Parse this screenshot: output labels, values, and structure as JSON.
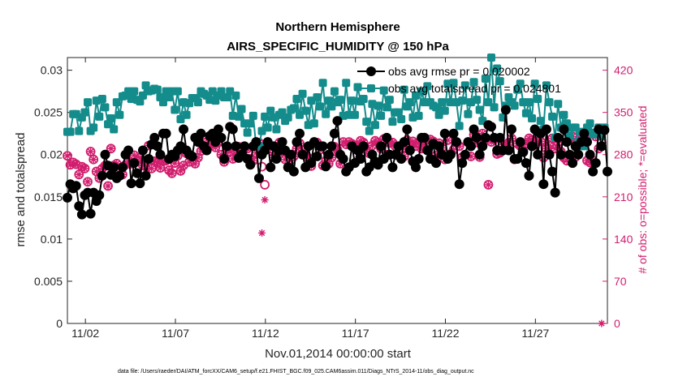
{
  "chart_data": {
    "type": "line",
    "title": "Northern Hemisphere",
    "subtitle": "AIRS_SPECIFIC_HUMIDITY @ 150 hPa",
    "xlabel": "Nov.01,2014 00:00:00 start",
    "ylabel": "rmse and totalspread",
    "y2label": "# of obs: o=possible; *=evaluated",
    "x_ticks": [
      "11/02",
      "11/07",
      "11/12",
      "11/17",
      "11/22",
      "11/27"
    ],
    "x_tick_days": [
      2,
      7,
      12,
      17,
      22,
      27
    ],
    "xlim": [
      1.0,
      31.0
    ],
    "ylim": [
      0,
      0.0315
    ],
    "y_ticks": [
      "0",
      "0.005",
      "0.01",
      "0.015",
      "0.02",
      "0.025",
      "0.03"
    ],
    "y2lim": [
      0,
      441
    ],
    "y2_ticks": [
      "0",
      "70",
      "140",
      "210",
      "280",
      "350",
      "420"
    ],
    "footer": "data file: /Users/raeder/DAI/ATM_forcXX/CAM6_setup/f.e21.FHIST_BGC.f09_025.CAM6assim.011/Diags_NTrS_2014-11/obs_diag_output.nc",
    "colors": {
      "rmse": "#000000",
      "spread": "#148c8c",
      "obs": "#d21e6e"
    },
    "series": [
      {
        "name": "obs avg rmse pr = 0.020002",
        "axis": "left",
        "values": [
          0.0149,
          0.0165,
          0.016,
          0.0163,
          0.0139,
          0.0129,
          0.0152,
          0.0155,
          0.013,
          0.0155,
          0.0145,
          0.0152,
          0.0175,
          0.02,
          0.0187,
          0.0176,
          0.0185,
          0.0172,
          0.0175,
          0.0185,
          0.02,
          0.0205,
          0.0166,
          0.019,
          0.0178,
          0.0166,
          0.0205,
          0.0175,
          0.0195,
          0.0212,
          0.022,
          0.021,
          0.02,
          0.0225,
          0.0225,
          0.0195,
          0.02,
          0.0198,
          0.0205,
          0.021,
          0.023,
          0.0205,
          0.02,
          0.0198,
          0.022,
          0.0215,
          0.0225,
          0.021,
          0.0205,
          0.0222,
          0.0225,
          0.0215,
          0.023,
          0.022,
          0.0195,
          0.021,
          0.0233,
          0.023,
          0.021,
          0.0196,
          0.02,
          0.021,
          0.0195,
          0.0188,
          0.021,
          0.0215,
          0.0172,
          0.02,
          0.0205,
          0.0215,
          0.0185,
          0.021,
          0.0195,
          0.0205,
          0.0215,
          0.0205,
          0.0185,
          0.02,
          0.018,
          0.0215,
          0.0225,
          0.02,
          0.0185,
          0.021,
          0.019,
          0.0215,
          0.0198,
          0.021,
          0.021,
          0.0186,
          0.02,
          0.021,
          0.0225,
          0.024,
          0.02,
          0.0195,
          0.018,
          0.0185,
          0.021,
          0.019,
          0.0205,
          0.0195,
          0.021,
          0.018,
          0.0185,
          0.02,
          0.0192,
          0.0188,
          0.021,
          0.0195,
          0.022,
          0.02,
          0.0185,
          0.02,
          0.021,
          0.0195,
          0.0215,
          0.023,
          0.0205,
          0.0192,
          0.0185,
          0.0195,
          0.022,
          0.022,
          0.0205,
          0.0195,
          0.0213,
          0.019,
          0.021,
          0.02,
          0.0225,
          0.0195,
          0.02,
          0.0225,
          0.0215,
          0.0165,
          0.019,
          0.02,
          0.0215,
          0.021,
          0.023,
          0.022,
          0.02,
          0.021,
          0.022,
          0.0235,
          0.0233,
          0.022,
          0.0205,
          0.022,
          0.0205,
          0.0253,
          0.0205,
          0.023,
          0.0195,
          0.0195,
          0.0215,
          0.0203,
          0.019,
          0.0175,
          0.021,
          0.023,
          0.02,
          0.0225,
          0.0165,
          0.023,
          0.02,
          0.018,
          0.0155,
          0.022,
          0.02,
          0.023,
          0.0215,
          0.02,
          0.019,
          0.021,
          0.02,
          0.0215,
          0.0225,
          0.0215,
          0.02,
          0.018,
          0.019,
          0.023,
          0.021,
          0.0229,
          0.018
        ]
      },
      {
        "name": "obs avg totalspread pr = 0.024801",
        "axis": "left",
        "values": [
          0.0227,
          0.0227,
          0.0248,
          0.0248,
          0.0228,
          0.0244,
          0.025,
          0.0262,
          0.0228,
          0.0232,
          0.0264,
          0.0245,
          0.0266,
          0.0256,
          0.0236,
          0.0243,
          0.023,
          0.0262,
          0.0247,
          0.0269,
          0.027,
          0.0275,
          0.0266,
          0.0275,
          0.0265,
          0.0263,
          0.027,
          0.0282,
          0.0275,
          0.0276,
          0.0278,
          0.0277,
          0.0268,
          0.0262,
          0.0275,
          0.0268,
          0.0275,
          0.0253,
          0.0275,
          0.0242,
          0.0262,
          0.0247,
          0.0261,
          0.0267,
          0.0267,
          0.0262,
          0.0275,
          0.0272,
          0.027,
          0.0265,
          0.0275,
          0.0264,
          0.027,
          0.0275,
          0.0268,
          0.0268,
          0.0275,
          0.0246,
          0.027,
          0.0245,
          0.0254,
          0.0237,
          0.0226,
          0.0237,
          0.0246,
          0.021,
          0.021,
          0.0228,
          0.0245,
          0.0232,
          0.0252,
          0.0244,
          0.023,
          0.0247,
          0.025,
          0.024,
          0.0244,
          0.0253,
          0.0255,
          0.0266,
          0.0247,
          0.0272,
          0.0252,
          0.0235,
          0.0264,
          0.0237,
          0.0268,
          0.0257,
          0.0285,
          0.0248,
          0.0264,
          0.0257,
          0.0275,
          0.0262,
          0.0265,
          0.0246,
          0.0285,
          0.0247,
          0.0264,
          0.0247,
          0.028,
          0.0263,
          0.0266,
          0.0239,
          0.0228,
          0.026,
          0.0235,
          0.0258,
          0.0246,
          0.0276,
          0.0256,
          0.0265,
          0.0239,
          0.025,
          0.025,
          0.0242,
          0.0277,
          0.0257,
          0.0262,
          0.0244,
          0.027,
          0.0246,
          0.0275,
          0.0262,
          0.0281,
          0.0262,
          0.0258,
          0.0256,
          0.0247,
          0.0262,
          0.0252,
          0.0284,
          0.0262,
          0.0285,
          0.0262,
          0.0234,
          0.0264,
          0.0282,
          0.0248,
          0.0262,
          0.0286,
          0.0265,
          0.0253,
          0.024,
          0.029,
          0.0262,
          0.0315,
          0.0256,
          0.0302,
          0.0287,
          0.0244,
          0.0258,
          0.0268,
          0.0262,
          0.0258,
          0.0277,
          0.0284,
          0.0262,
          0.0249,
          0.0262,
          0.0243,
          0.0284,
          0.0266,
          0.024,
          0.023,
          0.0282,
          0.0262,
          0.0245,
          0.022,
          0.026,
          0.0232,
          0.0247,
          0.0237,
          0.0222,
          0.0232,
          0.0232,
          0.0215,
          0.0227,
          0.021,
          0.0232,
          0.0237,
          0.0224,
          0.0226,
          0.0232,
          0.0222,
          0.0232
        ]
      },
      {
        "name": "obs possible",
        "axis": "right",
        "marker": "circle",
        "values": [
          278,
          263,
          267,
          264,
          247,
          260,
          257,
          235,
          285,
          272,
          252,
          241,
          257,
          262,
          228,
          290,
          262,
          265,
          246,
          247,
          263,
          270,
          265,
          279,
          270,
          275,
          262,
          260,
          295,
          257,
          269,
          267,
          258,
          269,
          270,
          254,
          249,
          266,
          278,
          253,
          262,
          282,
          268,
          276,
          265,
          275,
          286,
          300,
          288,
          296,
          298,
          292,
          300,
          280,
          268,
          290,
          285,
          273,
          282,
          293,
          280,
          290,
          290,
          273,
          270,
          283,
          300,
          260,
          230,
          295,
          290,
          275,
          290,
          300,
          285,
          272,
          281,
          271,
          277,
          290,
          299,
          287,
          280,
          275,
          261,
          300,
          300,
          288,
          262,
          270,
          265,
          275,
          293,
          288,
          265,
          301,
          297,
          301,
          298,
          295,
          294,
          303,
          300,
          288,
          282,
          295,
          303,
          300,
          290,
          306,
          280,
          299,
          300,
          294,
          278,
          289,
          277,
          304,
          294,
          302,
          294,
          299,
          290,
          291,
          300,
          305,
          302,
          279,
          299,
          291,
          272,
          304,
          281,
          288,
          301,
          294,
          276,
          280,
          300,
          277,
          313,
          300,
          276,
          315,
          305,
          230,
          301,
          305,
          281,
          283,
          297,
          297,
          300,
          307,
          272,
          298,
          294,
          286,
          298,
          307,
          304,
          296,
          302,
          302,
          275,
          290,
          295,
          307,
          290,
          300,
          285,
          275,
          270,
          305,
          310,
          276,
          303,
          310,
          309,
          270,
          267,
          270,
          310,
          290,
          300
        ]
      },
      {
        "name": "obs evaluated",
        "axis": "right",
        "marker": "asterisk",
        "values": [
          278,
          263,
          267,
          264,
          247,
          260,
          257,
          235,
          285,
          272,
          252,
          241,
          257,
          262,
          228,
          290,
          262,
          265,
          246,
          247,
          263,
          270,
          265,
          279,
          270,
          275,
          262,
          260,
          295,
          257,
          269,
          267,
          258,
          269,
          270,
          254,
          249,
          266,
          278,
          253,
          262,
          282,
          268,
          276,
          265,
          275,
          286,
          300,
          288,
          296,
          298,
          292,
          300,
          280,
          268,
          290,
          285,
          273,
          282,
          293,
          280,
          290,
          290,
          273,
          270,
          283,
          300,
          150,
          205,
          295,
          290,
          275,
          290,
          300,
          285,
          272,
          281,
          271,
          277,
          290,
          299,
          287,
          280,
          275,
          261,
          300,
          300,
          288,
          262,
          270,
          265,
          275,
          293,
          288,
          265,
          301,
          297,
          301,
          298,
          295,
          294,
          303,
          300,
          288,
          282,
          295,
          303,
          300,
          290,
          306,
          280,
          299,
          300,
          294,
          278,
          289,
          277,
          304,
          294,
          302,
          294,
          299,
          290,
          291,
          300,
          305,
          302,
          279,
          299,
          291,
          272,
          304,
          281,
          288,
          301,
          294,
          276,
          280,
          300,
          277,
          313,
          300,
          276,
          315,
          305,
          230,
          301,
          305,
          281,
          283,
          297,
          297,
          300,
          307,
          272,
          298,
          294,
          286,
          298,
          307,
          304,
          296,
          302,
          302,
          275,
          290,
          295,
          307,
          290,
          300,
          285,
          275,
          270,
          305,
          310,
          276,
          303,
          310,
          309,
          270,
          267,
          270,
          310,
          290,
          0
        ]
      }
    ]
  }
}
